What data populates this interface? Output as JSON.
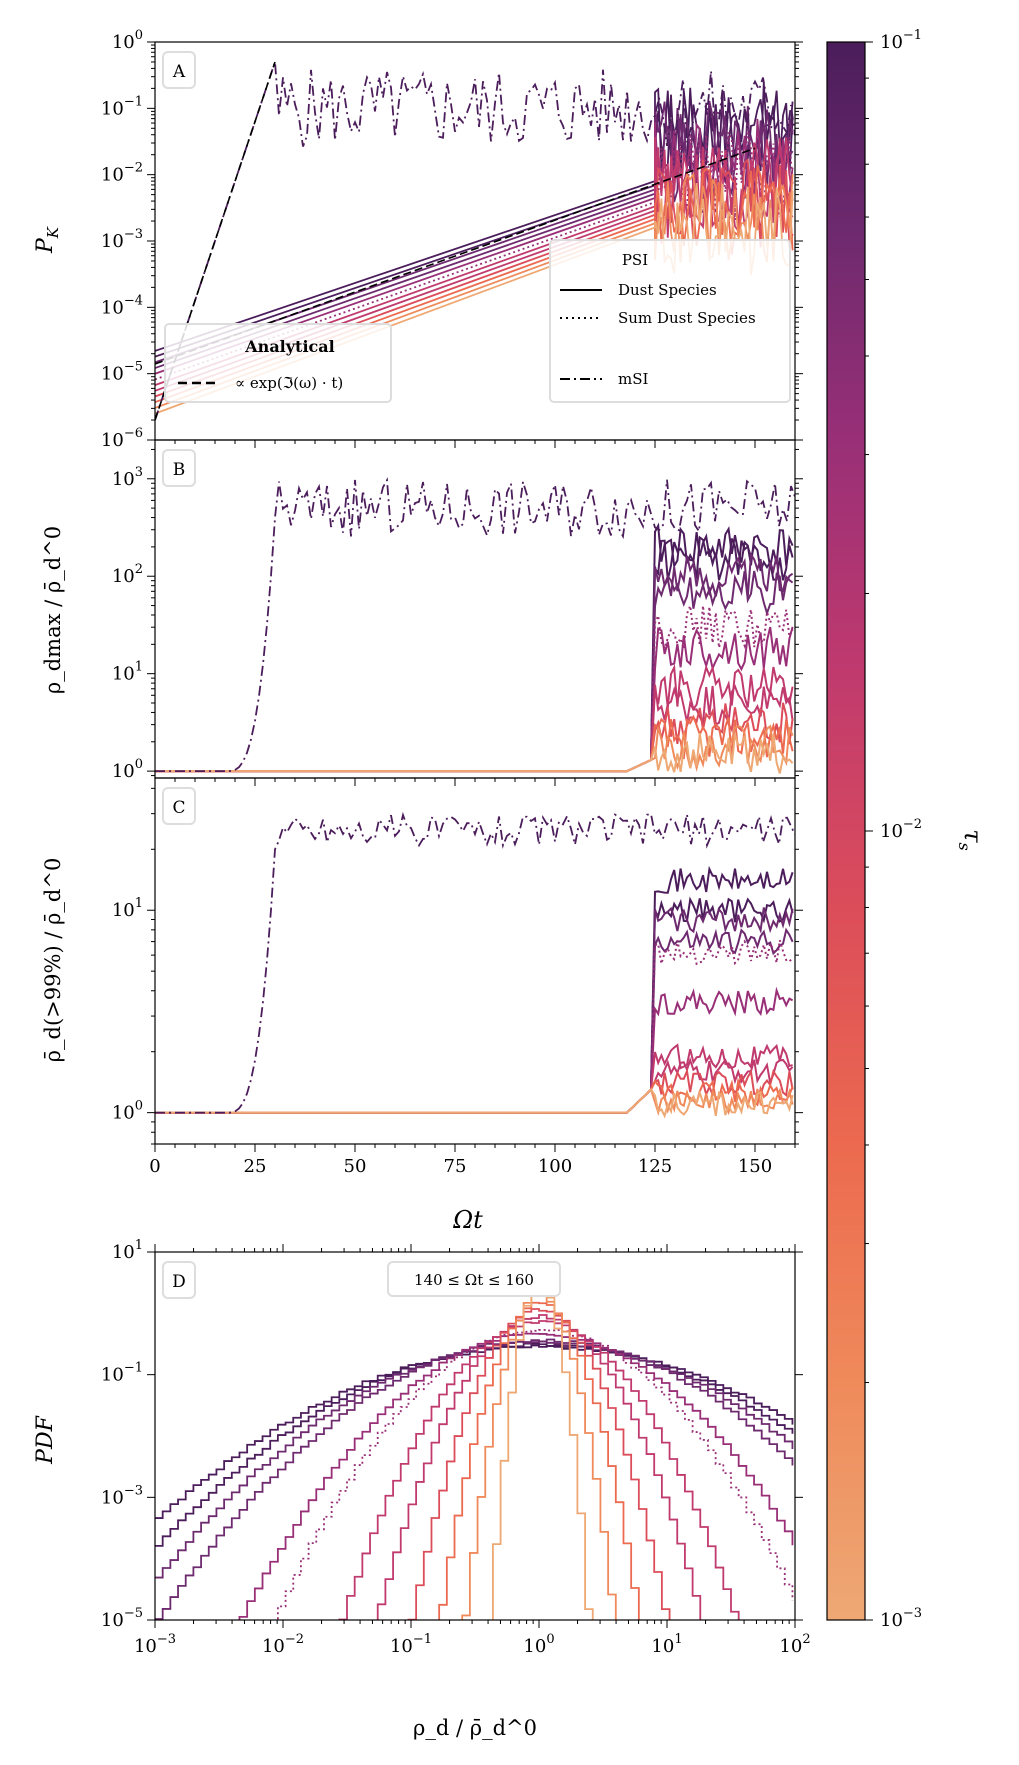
{
  "figure": {
    "colorbar": {
      "label": "τ",
      "label_sub": "s",
      "tick_labels": [
        "10",
        "10",
        "10"
      ],
      "tick_exps": [
        "−1",
        "−2",
        "−3"
      ],
      "range": [
        0.001,
        0.1
      ],
      "scale": "log",
      "colors": [
        "#4b1d5b",
        "#6e2a6e",
        "#982f77",
        "#c03a6e",
        "#dc4d5a",
        "#ec6a4f",
        "#ef8a5b",
        "#eea874"
      ]
    },
    "x_axis_shared": {
      "label": "Ωt",
      "ticks": [
        "0",
        "25",
        "50",
        "75",
        "100",
        "125",
        "150"
      ]
    }
  },
  "chart_data": [
    {
      "panel": "A",
      "type": "line",
      "ylabel": "P",
      "ylabel_sub": "K",
      "xlim": [
        0,
        160
      ],
      "ylim": [
        1e-06,
        1
      ],
      "yscale": "log",
      "yticks": [
        "10",
        "10",
        "10",
        "10",
        "10",
        "10",
        "10"
      ],
      "ytick_exps": [
        "0",
        "−1",
        "−2",
        "−3",
        "−4",
        "−5",
        "−6"
      ],
      "legend_analytical": {
        "title": "Analytical",
        "entry": "∝ exp(ℑ(ω) · t)"
      },
      "legend_main": {
        "title": "PSI",
        "entries": [
          "Dust Species",
          "Sum Dust Species",
          "mSI"
        ]
      },
      "series": [
        {
          "name": "mSI",
          "style": "dashdot",
          "points": [
            [
              0,
              2e-06
            ],
            [
              30,
              0.5
            ],
            [
              35,
              0.12
            ],
            [
              60,
              0.1
            ],
            [
              90,
              0.15
            ],
            [
              120,
              0.1
            ],
            [
              160,
              0.12
            ]
          ]
        },
        {
          "name": "Analytical (PSI)",
          "style": "dashed",
          "points": [
            [
              0,
              1.4e-05
            ],
            [
              150,
              0.025
            ]
          ]
        },
        {
          "name": "Analytical (mSI)",
          "style": "dashed",
          "points": [
            [
              0,
              2e-06
            ],
            [
              30,
              0.5
            ]
          ]
        }
      ],
      "psi_growth": {
        "t_start": 0,
        "t_sat": 125,
        "p0_top": 2.2e-05,
        "p0_bottom": 2.5e-06,
        "p_sat_top": 0.05,
        "p_sat_bottom": 0.0015
      }
    },
    {
      "panel": "B",
      "type": "line",
      "ylabel": "ρ_dmax / ρ̄_d^0",
      "xlim": [
        0,
        160
      ],
      "ylim": [
        0.85,
        2500
      ],
      "yscale": "log",
      "yticks": [
        "10",
        "10",
        "10",
        "10"
      ],
      "ytick_exps": [
        "0",
        "1",
        "2",
        "3"
      ],
      "series": [
        {
          "name": "mSI",
          "style": "dashdot",
          "t_rise": 30,
          "plateau": 500
        }
      ],
      "psi_plateaus": [
        200,
        150,
        100,
        70,
        30,
        18,
        7,
        5,
        3,
        2.2,
        1.8,
        1.5
      ],
      "psi_t_rise": 124
    },
    {
      "panel": "C",
      "type": "line",
      "ylabel": "ρ̄_d(>99%) / ρ̄_d^0",
      "xlim": [
        0,
        160
      ],
      "ylim": [
        0.7,
        45
      ],
      "yscale": "log",
      "yticks": [
        "10",
        "10"
      ],
      "ytick_exps": [
        "0",
        "1"
      ],
      "series": [
        {
          "name": "mSI",
          "style": "dashdot",
          "t_rise": 30,
          "plateau": 25
        }
      ],
      "psi_plateaus": [
        14,
        10,
        9,
        7,
        6.2,
        3.5,
        1.9,
        1.6,
        1.4,
        1.25,
        1.15,
        1.1
      ],
      "psi_t_rise": 124
    },
    {
      "panel": "D",
      "type": "line",
      "ylabel": "PDF",
      "xlabel": "ρ_d / ρ̄_d^0",
      "annotation": "140 ≤ Ωt ≤ 160",
      "xlim": [
        0.001,
        100
      ],
      "ylim": [
        1e-05,
        10
      ],
      "xscale": "log",
      "yscale": "log",
      "xticks": [
        "10",
        "10",
        "10",
        "10",
        "10",
        "10"
      ],
      "xtick_exps": [
        "−3",
        "−2",
        "−1",
        "0",
        "1",
        "2"
      ],
      "yticks": [
        "10",
        "10",
        "10"
      ],
      "ytick_exps": [
        "1",
        "−1",
        "−3"
      ],
      "extra_ytick": {
        "base": "10",
        "exp": "−5"
      },
      "pdf_widths": [
        1.4,
        1.3,
        1.2,
        1.1,
        0.85,
        0.75,
        0.55,
        0.45,
        0.35,
        0.27,
        0.2,
        0.13
      ]
    }
  ]
}
